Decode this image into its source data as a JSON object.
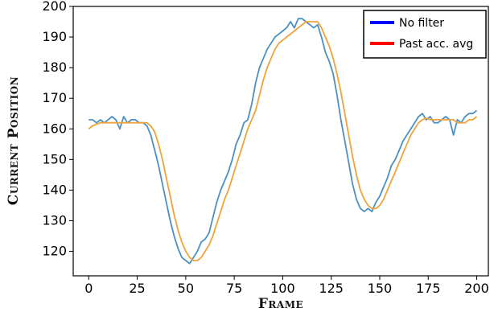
{
  "chart_data": {
    "type": "line",
    "title": "",
    "xlabel": "Frame",
    "ylabel": "Current Position",
    "xlim": [
      -8,
      206
    ],
    "ylim": [
      112,
      200
    ],
    "xticks": [
      0,
      25,
      50,
      75,
      100,
      125,
      150,
      175,
      200
    ],
    "yticks": [
      120,
      130,
      140,
      150,
      160,
      170,
      180,
      190,
      200
    ],
    "grid": false,
    "legend_position": "top-right",
    "legend": [
      {
        "label": "No filter",
        "swatch_color": "#0000ff"
      },
      {
        "label": "Past acc. avg",
        "swatch_color": "#ff0000"
      }
    ],
    "series": [
      {
        "name": "No filter",
        "color": "#4a90c4",
        "x": [
          0,
          2,
          4,
          6,
          8,
          10,
          12,
          14,
          16,
          18,
          20,
          22,
          24,
          26,
          28,
          30,
          32,
          34,
          36,
          38,
          40,
          42,
          44,
          46,
          48,
          50,
          52,
          54,
          56,
          58,
          60,
          62,
          64,
          66,
          68,
          70,
          72,
          74,
          76,
          78,
          80,
          82,
          84,
          86,
          88,
          90,
          92,
          94,
          96,
          98,
          100,
          102,
          104,
          106,
          108,
          110,
          112,
          114,
          116,
          118,
          120,
          122,
          124,
          126,
          128,
          130,
          132,
          134,
          136,
          138,
          140,
          142,
          144,
          146,
          148,
          150,
          152,
          154,
          156,
          158,
          160,
          162,
          164,
          166,
          168,
          170,
          172,
          174,
          176,
          178,
          180,
          182,
          184,
          186,
          188,
          190,
          192,
          194,
          196,
          198,
          200
        ],
        "y": [
          163,
          163,
          162,
          163,
          162,
          163,
          164,
          163,
          160,
          164,
          162,
          163,
          163,
          162,
          162,
          161,
          158,
          153,
          148,
          142,
          136,
          130,
          125,
          121,
          118,
          117,
          116,
          118,
          120,
          123,
          124,
          126,
          131,
          136,
          140,
          143,
          146,
          150,
          155,
          158,
          162,
          163,
          168,
          175,
          180,
          183,
          186,
          188,
          190,
          191,
          192,
          193,
          195,
          193,
          196,
          196,
          195,
          194,
          193,
          194,
          190,
          185,
          182,
          178,
          171,
          163,
          156,
          149,
          142,
          137,
          134,
          133,
          134,
          133,
          136,
          138,
          141,
          144,
          148,
          150,
          153,
          156,
          158,
          160,
          162,
          164,
          165,
          163,
          164,
          162,
          162,
          163,
          164,
          163,
          158,
          163,
          162,
          164,
          165,
          165,
          166
        ]
      },
      {
        "name": "Past acc. avg",
        "color": "#f0a23a",
        "x": [
          0,
          2,
          4,
          6,
          8,
          10,
          12,
          14,
          16,
          18,
          20,
          22,
          24,
          26,
          28,
          30,
          32,
          34,
          36,
          38,
          40,
          42,
          44,
          46,
          48,
          50,
          52,
          54,
          56,
          58,
          60,
          62,
          64,
          66,
          68,
          70,
          72,
          74,
          76,
          78,
          80,
          82,
          84,
          86,
          88,
          90,
          92,
          94,
          96,
          98,
          100,
          102,
          104,
          106,
          108,
          110,
          112,
          114,
          116,
          118,
          120,
          122,
          124,
          126,
          128,
          130,
          132,
          134,
          136,
          138,
          140,
          142,
          144,
          146,
          148,
          150,
          152,
          154,
          156,
          158,
          160,
          162,
          164,
          166,
          168,
          170,
          172,
          174,
          176,
          178,
          180,
          182,
          184,
          186,
          188,
          190,
          192,
          194,
          196,
          198,
          200
        ],
        "y": [
          160,
          161,
          161.5,
          162,
          162,
          162,
          162,
          162,
          162,
          162,
          162,
          162,
          162,
          162,
          162,
          162,
          161,
          159,
          155,
          150,
          144,
          138,
          132,
          127,
          123,
          120,
          118,
          117,
          117,
          118,
          120,
          122,
          125,
          129,
          133,
          137,
          140,
          144,
          148,
          152,
          156,
          160,
          163,
          166,
          171,
          176,
          180,
          183,
          186,
          188,
          189,
          190,
          191,
          192,
          193,
          194,
          195,
          195,
          195,
          195,
          193,
          190,
          187,
          183,
          178,
          172,
          165,
          158,
          151,
          145,
          140,
          137,
          135,
          134,
          134,
          135,
          137,
          140,
          143,
          146,
          149,
          152,
          155,
          158,
          160,
          162,
          163,
          163.5,
          163,
          163,
          163,
          163,
          163,
          163,
          163,
          162,
          162,
          162,
          163,
          163,
          164
        ]
      }
    ]
  }
}
